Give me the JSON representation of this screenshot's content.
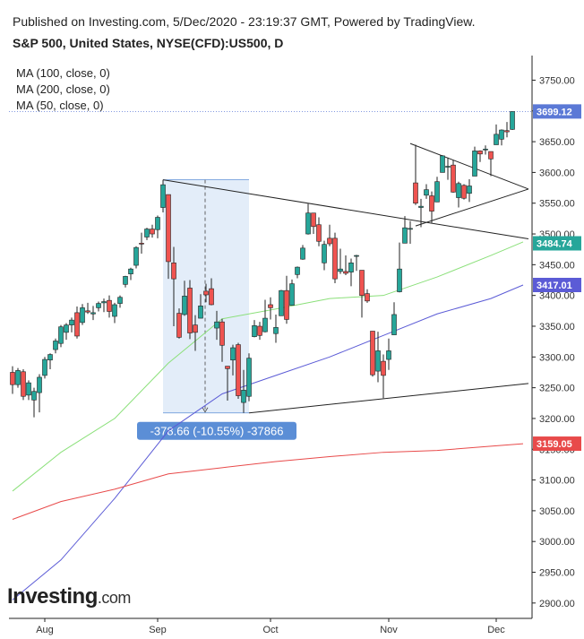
{
  "header": {
    "published": "Published on Investing.com, 5/Dec/2020 - 23:19:37 GMT, Powered by TradingView.",
    "symbol": "S&P 500, United States, NYSE(CFD):US500, D"
  },
  "indicators": [
    "MA (100, close, 0)",
    "MA (200, close, 0)",
    "MA (50, close, 0)"
  ],
  "logo": {
    "main": "Investing",
    "suffix": ".com"
  },
  "colors": {
    "up": "#26a69a",
    "down": "#ef5350",
    "ma50": "#8be07a",
    "ma100": "#5b5bd6",
    "ma200": "#e84a4a",
    "last": "#5b79d6",
    "range": "#5b8ed6"
  },
  "chart_data": {
    "type": "candlestick",
    "title": "S&P 500, United States, NYSE(CFD):US500, D",
    "y_ticks": [
      2900,
      2950,
      3000,
      3050,
      3100,
      3150,
      3200,
      3250,
      3300,
      3350,
      3400,
      3450,
      3500,
      3550,
      3600,
      3650,
      3700,
      3750
    ],
    "y_tick_labels": [
      "2900.00",
      "2950.00",
      "3000.00",
      "3050.00",
      "3100.00",
      "3150.00",
      "3200.00",
      "3250.00",
      "3300.00",
      "3350.00",
      "3400.00",
      "3450.00",
      "3500.00",
      "3550.00",
      "3600.00",
      "3650.00",
      "3700.00",
      "3750.00"
    ],
    "ylim": [
      2875,
      3790
    ],
    "x_labels": [
      {
        "label": "Aug",
        "date": "2020-08-03"
      },
      {
        "label": "Sep",
        "date": "2020-09-01"
      },
      {
        "label": "Oct",
        "date": "2020-10-01"
      },
      {
        "label": "Nov",
        "date": "2020-11-02"
      },
      {
        "label": "Dec",
        "date": "2020-12-01"
      }
    ],
    "candles": [
      {
        "d": "2020-07-24",
        "o": 3275,
        "h": 3285,
        "l": 3240,
        "c": 3255
      },
      {
        "d": "2020-07-27",
        "o": 3255,
        "h": 3282,
        "l": 3250,
        "c": 3278
      },
      {
        "d": "2020-07-28",
        "o": 3276,
        "h": 3280,
        "l": 3230,
        "c": 3236
      },
      {
        "d": "2020-07-29",
        "o": 3238,
        "h": 3262,
        "l": 3230,
        "c": 3258
      },
      {
        "d": "2020-07-30",
        "o": 3230,
        "h": 3250,
        "l": 3202,
        "c": 3244
      },
      {
        "d": "2020-07-31",
        "o": 3242,
        "h": 3272,
        "l": 3210,
        "c": 3267
      },
      {
        "d": "2020-08-03",
        "o": 3270,
        "h": 3300,
        "l": 3265,
        "c": 3296
      },
      {
        "d": "2020-08-04",
        "o": 3295,
        "h": 3306,
        "l": 3280,
        "c": 3304
      },
      {
        "d": "2020-08-05",
        "o": 3312,
        "h": 3330,
        "l": 3306,
        "c": 3326
      },
      {
        "d": "2020-08-06",
        "o": 3322,
        "h": 3352,
        "l": 3316,
        "c": 3349
      },
      {
        "d": "2020-08-07",
        "o": 3340,
        "h": 3355,
        "l": 3328,
        "c": 3352
      },
      {
        "d": "2020-08-10",
        "o": 3352,
        "h": 3364,
        "l": 3340,
        "c": 3360
      },
      {
        "d": "2020-08-11",
        "o": 3372,
        "h": 3382,
        "l": 3330,
        "c": 3334
      },
      {
        "d": "2020-08-12",
        "o": 3356,
        "h": 3386,
        "l": 3352,
        "c": 3380
      },
      {
        "d": "2020-08-13",
        "o": 3375,
        "h": 3388,
        "l": 3370,
        "c": 3373
      },
      {
        "d": "2020-08-14",
        "o": 3370,
        "h": 3383,
        "l": 3360,
        "c": 3372
      },
      {
        "d": "2020-08-17",
        "o": 3380,
        "h": 3390,
        "l": 3374,
        "c": 3387
      },
      {
        "d": "2020-08-18",
        "o": 3388,
        "h": 3395,
        "l": 3373,
        "c": 3390
      },
      {
        "d": "2020-08-19",
        "o": 3392,
        "h": 3400,
        "l": 3364,
        "c": 3374
      },
      {
        "d": "2020-08-20",
        "o": 3366,
        "h": 3388,
        "l": 3355,
        "c": 3385
      },
      {
        "d": "2020-08-21",
        "o": 3387,
        "h": 3400,
        "l": 3380,
        "c": 3397
      },
      {
        "d": "2020-08-24",
        "o": 3418,
        "h": 3432,
        "l": 3413,
        "c": 3431
      },
      {
        "d": "2020-08-25",
        "o": 3435,
        "h": 3445,
        "l": 3425,
        "c": 3443
      },
      {
        "d": "2020-08-26",
        "o": 3449,
        "h": 3480,
        "l": 3444,
        "c": 3478
      },
      {
        "d": "2020-08-27",
        "o": 3485,
        "h": 3502,
        "l": 3468,
        "c": 3484
      },
      {
        "d": "2020-08-28",
        "o": 3495,
        "h": 3510,
        "l": 3490,
        "c": 3508
      },
      {
        "d": "2020-08-31",
        "o": 3508,
        "h": 3515,
        "l": 3494,
        "c": 3500
      },
      {
        "d": "2020-09-01",
        "o": 3507,
        "h": 3530,
        "l": 3493,
        "c": 3527
      },
      {
        "d": "2020-09-02",
        "o": 3543,
        "h": 3588,
        "l": 3535,
        "c": 3580
      },
      {
        "d": "2020-09-03",
        "o": 3564,
        "h": 3564,
        "l": 3427,
        "c": 3455
      },
      {
        "d": "2020-09-04",
        "o": 3453,
        "h": 3479,
        "l": 3350,
        "c": 3427
      },
      {
        "d": "2020-09-08",
        "o": 3371,
        "h": 3379,
        "l": 3330,
        "c": 3332
      },
      {
        "d": "2020-09-09",
        "o": 3369,
        "h": 3424,
        "l": 3367,
        "c": 3399
      },
      {
        "d": "2020-09-10",
        "o": 3412,
        "h": 3425,
        "l": 3329,
        "c": 3339
      },
      {
        "d": "2020-09-11",
        "o": 3352,
        "h": 3368,
        "l": 3310,
        "c": 3340
      },
      {
        "d": "2020-09-14",
        "o": 3363,
        "h": 3402,
        "l": 3363,
        "c": 3383
      },
      {
        "d": "2020-09-15",
        "o": 3407,
        "h": 3419,
        "l": 3389,
        "c": 3401
      },
      {
        "d": "2020-09-16",
        "o": 3411,
        "h": 3428,
        "l": 3384,
        "c": 3385
      },
      {
        "d": "2020-09-17",
        "o": 3347,
        "h": 3375,
        "l": 3328,
        "c": 3357
      },
      {
        "d": "2020-09-18",
        "o": 3357,
        "h": 3362,
        "l": 3292,
        "c": 3319
      },
      {
        "d": "2020-09-21",
        "o": 3285,
        "h": 3285,
        "l": 3229,
        "c": 3281
      },
      {
        "d": "2020-09-22",
        "o": 3295,
        "h": 3320,
        "l": 3270,
        "c": 3315
      },
      {
        "d": "2020-09-23",
        "o": 3320,
        "h": 3323,
        "l": 3232,
        "c": 3237
      },
      {
        "d": "2020-09-24",
        "o": 3226,
        "h": 3279,
        "l": 3209,
        "c": 3246
      },
      {
        "d": "2020-09-25",
        "o": 3236,
        "h": 3306,
        "l": 3228,
        "c": 3298
      },
      {
        "d": "2020-09-28",
        "o": 3333,
        "h": 3360,
        "l": 3332,
        "c": 3351
      },
      {
        "d": "2020-09-29",
        "o": 3350,
        "h": 3357,
        "l": 3328,
        "c": 3335
      },
      {
        "d": "2020-09-30",
        "o": 3341,
        "h": 3393,
        "l": 3340,
        "c": 3363
      },
      {
        "d": "2020-10-01",
        "o": 3385,
        "h": 3397,
        "l": 3361,
        "c": 3380
      },
      {
        "d": "2020-10-02",
        "o": 3338,
        "h": 3369,
        "l": 3323,
        "c": 3348
      },
      {
        "d": "2020-10-05",
        "o": 3367,
        "h": 3409,
        "l": 3367,
        "c": 3408
      },
      {
        "d": "2020-10-06",
        "o": 3408,
        "h": 3432,
        "l": 3354,
        "c": 3361
      },
      {
        "d": "2020-10-07",
        "o": 3384,
        "h": 3426,
        "l": 3384,
        "c": 3419
      },
      {
        "d": "2020-10-08",
        "o": 3434,
        "h": 3447,
        "l": 3428,
        "c": 3446
      },
      {
        "d": "2020-10-09",
        "o": 3459,
        "h": 3482,
        "l": 3458,
        "c": 3477
      },
      {
        "d": "2020-10-12",
        "o": 3500,
        "h": 3549,
        "l": 3499,
        "c": 3534
      },
      {
        "d": "2020-10-13",
        "o": 3534,
        "h": 3534,
        "l": 3500,
        "c": 3512
      },
      {
        "d": "2020-10-14",
        "o": 3515,
        "h": 3527,
        "l": 3480,
        "c": 3488
      },
      {
        "d": "2020-10-15",
        "o": 3453,
        "h": 3489,
        "l": 3441,
        "c": 3483
      },
      {
        "d": "2020-10-16",
        "o": 3493,
        "h": 3515,
        "l": 3480,
        "c": 3484
      },
      {
        "d": "2020-10-19",
        "o": 3493,
        "h": 3502,
        "l": 3420,
        "c": 3427
      },
      {
        "d": "2020-10-20",
        "o": 3439,
        "h": 3476,
        "l": 3435,
        "c": 3443
      },
      {
        "d": "2020-10-21",
        "o": 3439,
        "h": 3465,
        "l": 3433,
        "c": 3436
      },
      {
        "d": "2020-10-22",
        "o": 3438,
        "h": 3460,
        "l": 3415,
        "c": 3453
      },
      {
        "d": "2020-10-23",
        "o": 3464,
        "h": 3466,
        "l": 3440,
        "c": 3465
      },
      {
        "d": "2020-10-26",
        "o": 3441,
        "h": 3441,
        "l": 3364,
        "c": 3400
      },
      {
        "d": "2020-10-27",
        "o": 3403,
        "h": 3410,
        "l": 3388,
        "c": 3391
      },
      {
        "d": "2020-10-28",
        "o": 3342,
        "h": 3342,
        "l": 3268,
        "c": 3271
      },
      {
        "d": "2020-10-29",
        "o": 3277,
        "h": 3341,
        "l": 3259,
        "c": 3310
      },
      {
        "d": "2020-10-30",
        "o": 3293,
        "h": 3304,
        "l": 3233,
        "c": 3270
      },
      {
        "d": "2020-11-02",
        "o": 3296,
        "h": 3330,
        "l": 3279,
        "c": 3310
      },
      {
        "d": "2020-11-03",
        "o": 3336,
        "h": 3389,
        "l": 3336,
        "c": 3369
      },
      {
        "d": "2020-11-04",
        "o": 3406,
        "h": 3486,
        "l": 3405,
        "c": 3443
      },
      {
        "d": "2020-11-05",
        "o": 3485,
        "h": 3529,
        "l": 3485,
        "c": 3510
      },
      {
        "d": "2020-11-06",
        "o": 3508,
        "h": 3521,
        "l": 3484,
        "c": 3509
      },
      {
        "d": "2020-11-09",
        "o": 3583,
        "h": 3645,
        "l": 3547,
        "c": 3550
      },
      {
        "d": "2020-11-10",
        "o": 3543,
        "h": 3557,
        "l": 3511,
        "c": 3545
      },
      {
        "d": "2020-11-11",
        "o": 3563,
        "h": 3581,
        "l": 3557,
        "c": 3572
      },
      {
        "d": "2020-11-12",
        "o": 3562,
        "h": 3569,
        "l": 3518,
        "c": 3537
      },
      {
        "d": "2020-11-13",
        "o": 3552,
        "h": 3593,
        "l": 3552,
        "c": 3585
      },
      {
        "d": "2020-11-16",
        "o": 3600,
        "h": 3628,
        "l": 3600,
        "c": 3627
      },
      {
        "d": "2020-11-17",
        "o": 3610,
        "h": 3624,
        "l": 3588,
        "c": 3610
      },
      {
        "d": "2020-11-18",
        "o": 3612,
        "h": 3620,
        "l": 3567,
        "c": 3568
      },
      {
        "d": "2020-11-19",
        "o": 3559,
        "h": 3585,
        "l": 3543,
        "c": 3582
      },
      {
        "d": "2020-11-20",
        "o": 3579,
        "h": 3581,
        "l": 3556,
        "c": 3558
      },
      {
        "d": "2020-11-23",
        "o": 3566,
        "h": 3589,
        "l": 3552,
        "c": 3578
      },
      {
        "d": "2020-11-24",
        "o": 3594,
        "h": 3642,
        "l": 3594,
        "c": 3635
      },
      {
        "d": "2020-11-25",
        "o": 3635,
        "h": 3636,
        "l": 3617,
        "c": 3630
      },
      {
        "d": "2020-11-27",
        "o": 3638,
        "h": 3644,
        "l": 3629,
        "c": 3638
      },
      {
        "d": "2020-11-30",
        "o": 3634,
        "h": 3634,
        "l": 3594,
        "c": 3622
      },
      {
        "d": "2020-12-01",
        "o": 3645,
        "h": 3678,
        "l": 3645,
        "c": 3662
      },
      {
        "d": "2020-12-02",
        "o": 3654,
        "h": 3670,
        "l": 3644,
        "c": 3669
      },
      {
        "d": "2020-12-03",
        "o": 3668,
        "h": 3682,
        "l": 3657,
        "c": 3666
      },
      {
        "d": "2020-12-04",
        "o": 3670,
        "h": 3699,
        "l": 3669,
        "c": 3699
      }
    ],
    "moving_averages": [
      {
        "name": "MA (50, close, 0)",
        "period": 50,
        "color": "#8be07a",
        "points": [
          [
            0,
            3082
          ],
          [
            9,
            3145
          ],
          [
            19,
            3200
          ],
          [
            29,
            3290
          ],
          [
            39,
            3362
          ],
          [
            49,
            3378
          ],
          [
            59,
            3395
          ],
          [
            69,
            3400
          ],
          [
            79,
            3430
          ],
          [
            89,
            3465
          ],
          [
            95,
            3487
          ]
        ]
      },
      {
        "name": "MA (100, close, 0)",
        "period": 100,
        "color": "#5b5bd6",
        "points": [
          [
            0,
            2905
          ],
          [
            9,
            2970
          ],
          [
            19,
            3070
          ],
          [
            29,
            3180
          ],
          [
            39,
            3240
          ],
          [
            49,
            3270
          ],
          [
            59,
            3300
          ],
          [
            69,
            3335
          ],
          [
            79,
            3370
          ],
          [
            89,
            3395
          ],
          [
            95,
            3417
          ]
        ]
      },
      {
        "name": "MA (200, close, 0)",
        "period": 200,
        "color": "#e84a4a",
        "points": [
          [
            0,
            3036
          ],
          [
            9,
            3065
          ],
          [
            19,
            3085
          ],
          [
            29,
            3110
          ],
          [
            39,
            3120
          ],
          [
            49,
            3130
          ],
          [
            59,
            3138
          ],
          [
            69,
            3145
          ],
          [
            79,
            3148
          ],
          [
            89,
            3155
          ],
          [
            95,
            3159
          ]
        ]
      }
    ],
    "last_price": 3699.12,
    "last_price_label": "3699.12",
    "price_labels": [
      {
        "value": 3484.74,
        "label": "3484.74",
        "color": "#26a69a"
      },
      {
        "value": 3417.01,
        "label": "3417.01",
        "color": "#5b5bd6"
      },
      {
        "value": 3159.05,
        "label": "3159.05",
        "color": "#e84a4a"
      }
    ],
    "measure": {
      "from_index": 28,
      "to_index": 44,
      "top": 3588,
      "bottom": 3209,
      "label": "-378.66 (-10.55%) -37866"
    },
    "trendlines": [
      {
        "from": [
          28,
          3588
        ],
        "to": [
          96,
          3492
        ]
      },
      {
        "from": [
          44,
          3209
        ],
        "to": [
          96,
          3257
        ]
      },
      {
        "from": [
          74,
          3647
        ],
        "to": [
          96,
          3573
        ]
      },
      {
        "from": [
          75,
          3513
        ],
        "to": [
          96,
          3573
        ]
      }
    ]
  }
}
